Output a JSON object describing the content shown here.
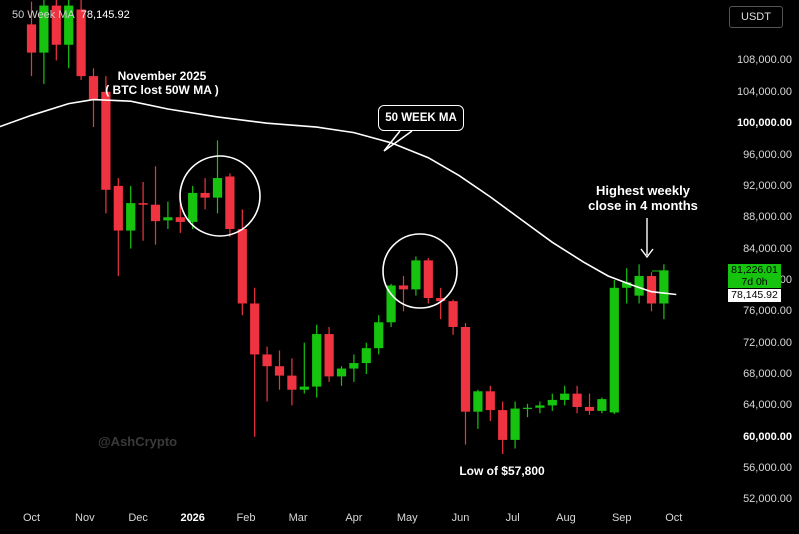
{
  "legend": {
    "label": "50 Week MA",
    "value": "78,145.92"
  },
  "currency": "USDT",
  "price_tags": {
    "last_price": "81,226.01",
    "countdown": "7d 0h",
    "ma_value": "78,145.92"
  },
  "annotations": {
    "nov_title": "November 2025",
    "nov_sub": "( BTC lost 50W MA )",
    "ma_box": "50 WEEK MA",
    "highest_line1": "Highest weekly",
    "highest_line2": "close in 4 months",
    "low_label": "Low of $57,800"
  },
  "watermark": "@AshCrypto",
  "colors": {
    "up": "#16c40f",
    "down": "#ef3340",
    "ma": "#ffffff",
    "background": "#000000",
    "price_tag": "#16c40f"
  },
  "chart_data": {
    "type": "candlestick",
    "ylim": [
      50000,
      115000
    ],
    "y_ticks": [
      "52,000.00",
      "56,000.00",
      "60,000.00",
      "64,000.00",
      "68,000.00",
      "72,000.00",
      "76,000.00",
      "80,000.00",
      "84,000.00",
      "88,000.00",
      "92,000.00",
      "96,000.00",
      "100,000.00",
      "104,000.00",
      "108,000.00"
    ],
    "y_tick_values": [
      52000,
      56000,
      60000,
      64000,
      68000,
      72000,
      76000,
      80000,
      84000,
      88000,
      92000,
      96000,
      100000,
      104000,
      108000
    ],
    "y_major_ticks": [
      "60,000.00",
      "100,000.00"
    ],
    "x_ticks": [
      "Oct",
      "Nov",
      "Dec",
      "2026",
      "Feb",
      "Mar",
      "Apr",
      "May",
      "Jun",
      "Jul",
      "Aug",
      "Sep",
      "Oct"
    ],
    "x_tick_positions": [
      0.0,
      4.3,
      8.6,
      13.0,
      17.3,
      21.5,
      26.0,
      30.3,
      34.6,
      38.8,
      43.1,
      47.6,
      51.8
    ],
    "x_major_ticks": [
      "2026"
    ],
    "candles": [
      {
        "i": 0,
        "o": 112600,
        "h": 115500,
        "c": 109000,
        "l": 106000
      },
      {
        "i": 1,
        "o": 109000,
        "h": 116000,
        "c": 115000,
        "l": 105000
      },
      {
        "i": 2,
        "o": 115000,
        "h": 117000,
        "c": 110000,
        "l": 108000
      },
      {
        "i": 3,
        "o": 110000,
        "h": 116000,
        "c": 115000,
        "l": 107000
      },
      {
        "i": 4,
        "o": 114500,
        "h": 116500,
        "c": 106000,
        "l": 105500
      },
      {
        "i": 5,
        "o": 106000,
        "h": 107000,
        "c": 103000,
        "l": 99500
      },
      {
        "i": 6,
        "o": 104000,
        "h": 106000,
        "c": 91500,
        "l": 88500
      },
      {
        "i": 7,
        "o": 92000,
        "h": 93000,
        "c": 86300,
        "l": 80500
      },
      {
        "i": 8,
        "o": 86300,
        "h": 92000,
        "c": 89800,
        "l": 84000
      },
      {
        "i": 9,
        "o": 89800,
        "h": 92500,
        "c": 89600,
        "l": 85000
      },
      {
        "i": 10,
        "o": 89600,
        "h": 94500,
        "c": 87500,
        "l": 84500
      },
      {
        "i": 11,
        "o": 87600,
        "h": 90000,
        "c": 88000,
        "l": 86500
      },
      {
        "i": 12,
        "o": 88000,
        "h": 91000,
        "c": 87400,
        "l": 86000
      },
      {
        "i": 13,
        "o": 87400,
        "h": 92000,
        "c": 91100,
        "l": 86500
      },
      {
        "i": 14,
        "o": 91100,
        "h": 93000,
        "c": 90500,
        "l": 89000
      },
      {
        "i": 15,
        "o": 90500,
        "h": 97800,
        "c": 93000,
        "l": 88500
      },
      {
        "i": 16,
        "o": 93200,
        "h": 93600,
        "c": 86500,
        "l": 85500
      },
      {
        "i": 17,
        "o": 86500,
        "h": 89000,
        "c": 77000,
        "l": 75500
      },
      {
        "i": 18,
        "o": 77000,
        "h": 79000,
        "c": 70500,
        "l": 60000
      },
      {
        "i": 19,
        "o": 70500,
        "h": 71500,
        "c": 69000,
        "l": 64500
      },
      {
        "i": 20,
        "o": 69000,
        "h": 71000,
        "c": 67800,
        "l": 66000
      },
      {
        "i": 21,
        "o": 67800,
        "h": 70000,
        "c": 66000,
        "l": 64000
      },
      {
        "i": 22,
        "o": 66000,
        "h": 72000,
        "c": 66400,
        "l": 65500
      },
      {
        "i": 23,
        "o": 66400,
        "h": 74300,
        "c": 73100,
        "l": 65000
      },
      {
        "i": 24,
        "o": 73100,
        "h": 74000,
        "c": 67700,
        "l": 67000
      },
      {
        "i": 25,
        "o": 67700,
        "h": 69000,
        "c": 68700,
        "l": 66500
      },
      {
        "i": 26,
        "o": 68700,
        "h": 70500,
        "c": 69400,
        "l": 67000
      },
      {
        "i": 27,
        "o": 69400,
        "h": 72000,
        "c": 71300,
        "l": 68000
      },
      {
        "i": 28,
        "o": 71300,
        "h": 75500,
        "c": 74600,
        "l": 70500
      },
      {
        "i": 29,
        "o": 74600,
        "h": 79500,
        "c": 79300,
        "l": 74000
      },
      {
        "i": 30,
        "o": 79300,
        "h": 80500,
        "c": 78800,
        "l": 76000
      },
      {
        "i": 31,
        "o": 78800,
        "h": 83000,
        "c": 82500,
        "l": 78000
      },
      {
        "i": 32,
        "o": 82500,
        "h": 82800,
        "c": 77700,
        "l": 77000
      },
      {
        "i": 33,
        "o": 77700,
        "h": 79000,
        "c": 77300,
        "l": 75000
      },
      {
        "i": 34,
        "o": 77300,
        "h": 77500,
        "c": 74000,
        "l": 73000
      },
      {
        "i": 35,
        "o": 74000,
        "h": 74500,
        "c": 63200,
        "l": 59000
      },
      {
        "i": 36,
        "o": 63200,
        "h": 66000,
        "c": 65800,
        "l": 61000
      },
      {
        "i": 37,
        "o": 65800,
        "h": 66500,
        "c": 63400,
        "l": 62000
      },
      {
        "i": 38,
        "o": 63400,
        "h": 64500,
        "c": 59600,
        "l": 57800
      },
      {
        "i": 39,
        "o": 59600,
        "h": 64500,
        "c": 63600,
        "l": 58500
      },
      {
        "i": 40,
        "o": 63600,
        "h": 64200,
        "c": 63700,
        "l": 62500
      },
      {
        "i": 41,
        "o": 63700,
        "h": 64500,
        "c": 64000,
        "l": 63000
      },
      {
        "i": 42,
        "o": 64000,
        "h": 65500,
        "c": 64700,
        "l": 63300
      },
      {
        "i": 43,
        "o": 64700,
        "h": 66500,
        "c": 65500,
        "l": 64000
      },
      {
        "i": 44,
        "o": 65500,
        "h": 66500,
        "c": 63800,
        "l": 63000
      },
      {
        "i": 45,
        "o": 63800,
        "h": 65500,
        "c": 63300,
        "l": 62800
      },
      {
        "i": 46,
        "o": 63300,
        "h": 65000,
        "c": 64800,
        "l": 63000
      },
      {
        "i": 47,
        "o": 63100,
        "h": 80000,
        "c": 79000,
        "l": 62900
      },
      {
        "i": 48,
        "o": 79000,
        "h": 81500,
        "c": 79700,
        "l": 77000
      },
      {
        "i": 49,
        "o": 78000,
        "h": 82000,
        "c": 80500,
        "l": 77000
      },
      {
        "i": 50,
        "o": 80500,
        "h": 81000,
        "c": 77000,
        "l": 76000
      },
      {
        "i": 51,
        "o": 77000,
        "h": 82000,
        "c": 81226,
        "l": 75000
      }
    ],
    "moving_average": {
      "name": "50 Week MA",
      "points": [
        [
          -3,
          99300
        ],
        [
          0,
          101000
        ],
        [
          3,
          102500
        ],
        [
          5,
          103000
        ],
        [
          8,
          102800
        ],
        [
          11,
          101800
        ],
        [
          15,
          100800
        ],
        [
          19,
          100000
        ],
        [
          23,
          99500
        ],
        [
          26,
          98800
        ],
        [
          29,
          97500
        ],
        [
          32,
          95600
        ],
        [
          34.5,
          93300
        ],
        [
          37,
          90600
        ],
        [
          39.5,
          87700
        ],
        [
          42,
          84800
        ],
        [
          44.5,
          82300
        ],
        [
          46.5,
          80500
        ],
        [
          48.5,
          79300
        ],
        [
          50,
          78500
        ],
        [
          52,
          78146
        ]
      ]
    }
  }
}
